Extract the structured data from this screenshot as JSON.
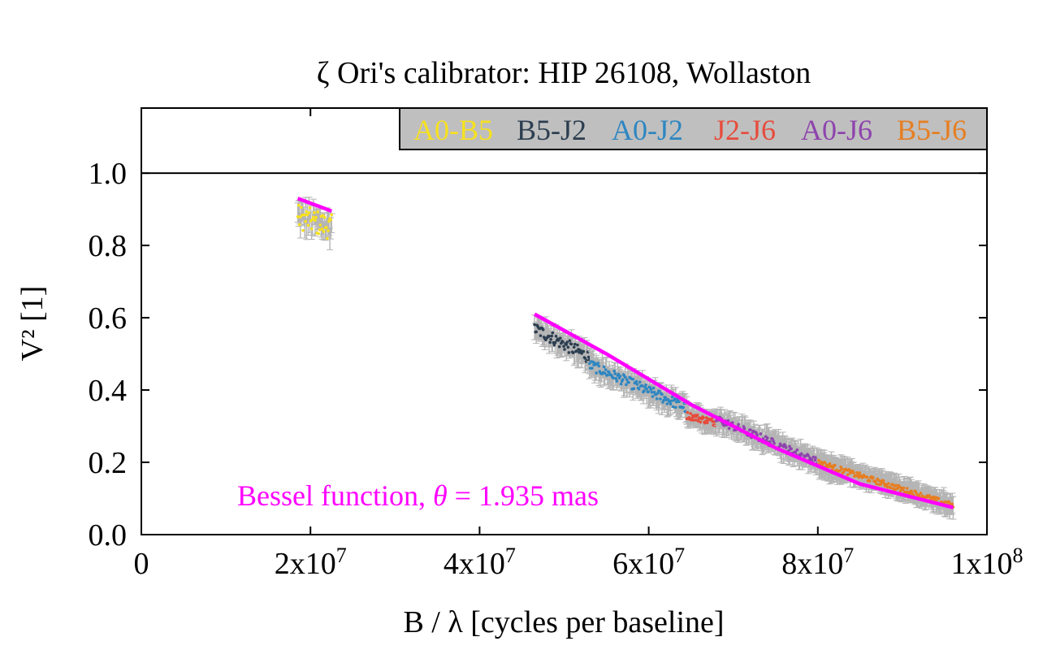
{
  "chart_data": {
    "type": "scatter",
    "title": "ζ Ori's calibrator: HIP 26108, Wollaston",
    "xlabel": "B / λ [cycles per baseline]",
    "ylabel": "V² [1]",
    "xlim": [
      0,
      100000000
    ],
    "ylim": [
      0,
      1.18
    ],
    "x_ticks": [
      {
        "value": 0,
        "label": "0"
      },
      {
        "value": 20000000,
        "label": "2x10",
        "exp": "7"
      },
      {
        "value": 40000000,
        "label": "4x10",
        "exp": "7"
      },
      {
        "value": 60000000,
        "label": "6x10",
        "exp": "7"
      },
      {
        "value": 80000000,
        "label": "8x10",
        "exp": "7"
      },
      {
        "value": 100000000,
        "label": "1x10",
        "exp": "8"
      }
    ],
    "y_ticks": [
      {
        "value": 0.0,
        "label": "0.0"
      },
      {
        "value": 0.2,
        "label": "0.2"
      },
      {
        "value": 0.4,
        "label": "0.4"
      },
      {
        "value": 0.6,
        "label": "0.6"
      },
      {
        "value": 0.8,
        "label": "0.8"
      },
      {
        "value": 1.0,
        "label": "1.0"
      }
    ],
    "reference_line_y": 1.0,
    "legend_position": "top-right",
    "series": [
      {
        "name": "A0-B5",
        "color": "#f7e11e",
        "x_range": [
          18500000,
          22500000
        ],
        "y_start": 0.88,
        "y_end": 0.85,
        "spread": 0.035
      },
      {
        "name": "B5-J2",
        "color": "#2c3e50",
        "x_range": [
          46500000,
          53000000
        ],
        "y_start": 0.57,
        "y_end": 0.49,
        "spread": 0.018
      },
      {
        "name": "A0-J2",
        "color": "#2e86c1",
        "x_range": [
          53000000,
          64500000
        ],
        "y_start": 0.47,
        "y_end": 0.35,
        "spread": 0.015
      },
      {
        "name": "J2-J6",
        "color": "#e74c3c",
        "x_range": [
          64500000,
          68000000
        ],
        "y_start": 0.33,
        "y_end": 0.31,
        "spread": 0.01
      },
      {
        "name": "A0-J6",
        "color": "#8e44ad",
        "x_range": [
          68000000,
          83000000
        ],
        "y_start": 0.32,
        "y_end": 0.17,
        "spread": 0.012
      },
      {
        "name": "B5-J6",
        "color": "#e67e22",
        "x_range": [
          80000000,
          96000000
        ],
        "y_start": 0.2,
        "y_end": 0.08,
        "spread": 0.008
      }
    ],
    "fit": {
      "name": "Bessel function",
      "color": "#ff00ff",
      "segments": [
        {
          "x": [
            18500000,
            22500000
          ],
          "y": [
            0.93,
            0.895
          ]
        },
        {
          "x": [
            46500000,
            55000000,
            65000000,
            75000000,
            85000000,
            96000000
          ],
          "y": [
            0.61,
            0.5,
            0.36,
            0.24,
            0.14,
            0.075
          ]
        }
      ]
    },
    "annotation": {
      "text_prefix": "Bessel function, ",
      "symbol": "θ",
      "text_suffix": " = 1.935 mas",
      "position": "bottom-left"
    }
  }
}
